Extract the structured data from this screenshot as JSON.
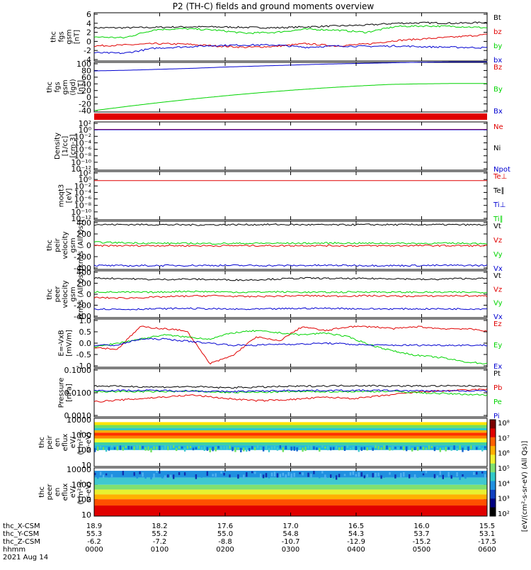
{
  "title": "P2 (TH-C) fields and ground moments overview",
  "colors": {
    "black": "#000000",
    "red": "#e00000",
    "green": "#00d400",
    "blue": "#0000d0"
  },
  "chart_data": [
    {
      "type": "line",
      "ylabel": [
        "thc",
        "fgs",
        "gsm",
        "[nT]"
      ],
      "ylim": [
        -4,
        6
      ],
      "yticks": [
        "6",
        "4",
        "2",
        "0",
        "-2",
        "-4"
      ],
      "series": [
        {
          "name": "Bt",
          "color": "#000000",
          "values": [
            3.0,
            3.0,
            3.1,
            3.2,
            3.2,
            3.1,
            3.0,
            3.2,
            3.4,
            3.6,
            4.0,
            4.1,
            4.0,
            4.2
          ]
        },
        {
          "name": "bz",
          "color": "#e00000",
          "values": [
            -1.0,
            -0.8,
            -0.5,
            -0.6,
            -1.0,
            -1.3,
            -1.1,
            -0.5,
            -1.0,
            -0.6,
            0.2,
            0.6,
            1.0,
            1.5
          ]
        },
        {
          "name": "by",
          "color": "#00d400",
          "values": [
            1.0,
            0.8,
            2.6,
            2.8,
            2.5,
            1.8,
            2.0,
            2.7,
            2.5,
            2.0,
            3.3,
            3.4,
            3.3,
            3.0
          ]
        },
        {
          "name": "bx",
          "color": "#0000d0",
          "values": [
            -2.5,
            -2.6,
            -1.5,
            -1.2,
            -0.9,
            -0.8,
            -0.8,
            -1.3,
            -1.0,
            -1.1,
            -1.0,
            -1.2,
            -1.3,
            -1.4
          ]
        }
      ]
    },
    {
      "type": "line",
      "ylabel": [
        "thc",
        "fgs",
        "gsm",
        "(lgd)",
        "[nT]"
      ],
      "ylim": [
        -45,
        100
      ],
      "yticks": [
        "100",
        "80",
        "60",
        "40",
        "20",
        "0",
        "-20",
        "-40"
      ],
      "series": [
        {
          "name": "Bz",
          "color": "#e00000",
          "values": []
        },
        {
          "name": "By",
          "color": "#00d400",
          "values": [
            -45,
            -32,
            -20,
            -9,
            1,
            10,
            18,
            25,
            31,
            36,
            38,
            39,
            39
          ]
        },
        {
          "name": "Bx",
          "color": "#0000d0",
          "values": [
            78,
            80,
            83,
            86,
            90,
            93,
            96,
            99,
            101,
            103,
            105,
            106,
            106
          ]
        }
      ]
    },
    {
      "type": "line",
      "ylabel": [
        "Density",
        "[1/cc]",
        "[cm-3]"
      ],
      "ylim": [
        -12,
        3
      ],
      "yticks": [
        "10²",
        "10⁰",
        "10⁻²",
        "10⁻⁴",
        "10⁻⁶",
        "10⁻⁸",
        "10⁻¹⁰",
        "10⁻¹²"
      ],
      "series": [
        {
          "name": "Ne",
          "color": "#e00000",
          "values": [
            1.0,
            1.0,
            1.0,
            1.0,
            1.0,
            1.0,
            1.0
          ]
        },
        {
          "name": "Ni",
          "color": "#000000",
          "values": []
        },
        {
          "name": "Npot",
          "color": "#0000d0",
          "values": [
            0.9,
            0.9,
            0.9,
            0.9,
            0.9,
            0.9,
            0.9
          ]
        }
      ]
    },
    {
      "type": "line",
      "ylabel": [
        "moqt3",
        "[eV]"
      ],
      "ylim": [
        -12,
        3
      ],
      "yticks": [
        "10²",
        "10⁰",
        "10⁻²",
        "10⁻⁴",
        "10⁻⁶",
        "10⁻⁸",
        "10⁻¹⁰",
        "10⁻¹²"
      ],
      "series": [
        {
          "name": "Te⊥",
          "color": "#e00000",
          "values": [
            0.5,
            0.5,
            0.5,
            0.5,
            0.5
          ]
        },
        {
          "name": "Te∥",
          "color": "#000000",
          "values": []
        },
        {
          "name": "Ti⊥",
          "color": "#0000d0",
          "values": []
        },
        {
          "name": "Ti∥",
          "color": "#00d400",
          "values": []
        }
      ]
    },
    {
      "type": "line",
      "ylabel": [
        "thc",
        "peir",
        "velocity",
        "gsm",
        "[km/s (All Qs)]"
      ],
      "ylim": [
        -450,
        450
      ],
      "yticks": [
        "400",
        "200",
        "0",
        "-200",
        "-400"
      ],
      "series": [
        {
          "name": "Vt",
          "color": "#000000",
          "values": [
            410,
            412,
            410,
            405,
            408,
            410,
            412,
            408,
            405,
            410,
            408,
            410,
            408,
            405
          ]
        },
        {
          "name": "Vz",
          "color": "#e00000",
          "values": [
            -10,
            -8,
            -5,
            -8,
            -10,
            -6,
            -8,
            -5,
            -8,
            -10,
            -8,
            -6,
            -8,
            -10
          ]
        },
        {
          "name": "Vy",
          "color": "#00d400",
          "values": [
            60,
            50,
            40,
            38,
            35,
            38,
            40,
            40,
            45,
            40,
            40,
            38,
            40,
            38
          ]
        },
        {
          "name": "Vx",
          "color": "#0000d0",
          "values": [
            -400,
            -405,
            -402,
            -400,
            -398,
            -400,
            -402,
            -400,
            -398,
            -400,
            -402,
            -400,
            -398,
            -400
          ]
        }
      ]
    },
    {
      "type": "line",
      "ylabel": [
        "thc",
        "peer",
        "velocity",
        "gsm",
        "[km/s (All Qs)]"
      ],
      "ylim": [
        -450,
        450
      ],
      "yticks": [
        "400",
        "200",
        "0",
        "-200",
        "-400"
      ],
      "series": [
        {
          "name": "Vt",
          "color": "#000000",
          "values": [
            330,
            320,
            300,
            310,
            300,
            290,
            310,
            330,
            320,
            320,
            320,
            300,
            320,
            320
          ]
        },
        {
          "name": "Vz",
          "color": "#e00000",
          "values": [
            -70,
            -80,
            -60,
            -40,
            -30,
            -50,
            -40,
            -30,
            -40,
            -30,
            -40,
            -40,
            -30,
            -40
          ]
        },
        {
          "name": "Vy",
          "color": "#00d400",
          "values": [
            50,
            40,
            40,
            60,
            50,
            40,
            50,
            40,
            40,
            50,
            40,
            40,
            40,
            40
          ]
        },
        {
          "name": "Vx",
          "color": "#0000d0",
          "values": [
            -300,
            -310,
            -300,
            -290,
            -300,
            -310,
            -300,
            -290,
            -290,
            -300,
            -300,
            -300,
            -300,
            -300
          ]
        }
      ]
    },
    {
      "type": "line",
      "ylabel": [
        "E=-VxB",
        "[mV/m]"
      ],
      "ylim": [
        -1.0,
        1.2
      ],
      "yticks": [
        "1.0",
        "0.5",
        "0.0",
        "-0.5",
        "-1.0"
      ],
      "series": [
        {
          "name": "Ez",
          "color": "#e00000",
          "values": [
            -0.1,
            -0.2,
            0.9,
            0.8,
            0.7,
            -0.9,
            -0.5,
            0.4,
            0.2,
            0.9,
            0.7,
            0.9,
            0.9,
            0.8,
            0.9,
            0.8,
            0.8,
            0.7
          ]
        },
        {
          "name": "Ey",
          "color": "#00d400",
          "values": [
            -0.1,
            0.1,
            0.3,
            0.5,
            0.4,
            0.3,
            0.6,
            0.7,
            0.6,
            0.5,
            0.6,
            0.4,
            0.0,
            -0.3,
            -0.5,
            -0.6,
            -0.8,
            -0.9
          ]
        },
        {
          "name": "Ex",
          "color": "#0000d0",
          "values": [
            0.0,
            0.0,
            0.3,
            0.3,
            0.2,
            0.1,
            0.0,
            0.0,
            0.05,
            0.05,
            0.1,
            0.05,
            0.0,
            0.0,
            0.0,
            0.0,
            0.0,
            0.0
          ]
        }
      ]
    },
    {
      "type": "line",
      "ylabel": [
        "Pressure",
        "[nPa]"
      ],
      "ylim": [
        -3,
        -1
      ],
      "yticks": [
        "0.1000",
        "0.0100",
        "0.0010"
      ],
      "series": [
        {
          "name": "Pt",
          "color": "#000000",
          "values": [
            -1.7,
            -1.72,
            -1.75,
            -1.73,
            -1.78,
            -1.75,
            -1.72,
            -1.7,
            -1.68,
            -1.7,
            -1.7,
            -1.7,
            -1.7
          ]
        },
        {
          "name": "Pb",
          "color": "#e00000",
          "values": [
            -2.4,
            -2.3,
            -2.2,
            -2.1,
            -2.25,
            -2.35,
            -2.3,
            -2.2,
            -2.25,
            -2.1,
            -1.95,
            -1.9,
            -1.85
          ]
        },
        {
          "name": "Pe",
          "color": "#00d400",
          "values": [
            -1.95,
            -1.95,
            -1.95,
            -1.93,
            -1.98,
            -1.98,
            -1.95,
            -1.95,
            -1.95,
            -1.93,
            -2.0,
            -2.05,
            -2.1
          ]
        },
        {
          "name": "Pi",
          "color": "#0000d0",
          "values": [
            -1.9,
            -1.9,
            -1.9,
            -1.92,
            -1.95,
            -1.93,
            -1.9,
            -1.9,
            -1.9,
            -1.9,
            -1.92,
            -1.92,
            -1.92
          ]
        }
      ]
    },
    {
      "type": "heatmap",
      "ylabel": [
        "thc",
        "peir",
        "en",
        "eflux",
        "eV/",
        "(cm²-s-",
        "sr-eV)"
      ],
      "yticks": [
        "10000",
        "1000",
        "100",
        "10"
      ],
      "ylim": [
        5,
        20000
      ]
    },
    {
      "type": "heatmap",
      "ylabel": [
        "thc",
        "peer",
        "en",
        "eflux",
        "eV/",
        "(cm²-s-",
        "sr-eV)"
      ],
      "yticks": [
        "10000",
        "1000",
        "100",
        "10"
      ],
      "ylim": [
        5,
        20000
      ]
    }
  ],
  "colorbar": {
    "ticks": [
      "10⁸",
      "10⁷",
      "10⁶",
      "10⁵",
      "10⁴",
      "10³",
      "10²"
    ],
    "label": "[eV/(cm²-s-sr-eV) (All Qs)]"
  },
  "xaxis": {
    "rows": [
      {
        "label": "thc_X-CSM",
        "values": [
          "18.9",
          "18.2",
          "17.6",
          "17.0",
          "16.5",
          "16.0",
          "15.5"
        ]
      },
      {
        "label": "thc_Y-CSM",
        "values": [
          "55.3",
          "55.2",
          "55.0",
          "54.8",
          "54.3",
          "53.7",
          "53.1"
        ]
      },
      {
        "label": "thc_Z-CSM",
        "values": [
          "-6.2",
          "-7.2",
          "-8.8",
          "-10.7",
          "-12.9",
          "-15.2",
          "-17.5"
        ]
      },
      {
        "label": "hhmm",
        "values": [
          "0000",
          "0100",
          "0200",
          "0300",
          "0400",
          "0500",
          "0600"
        ]
      }
    ],
    "date": "2021 Aug 14"
  }
}
